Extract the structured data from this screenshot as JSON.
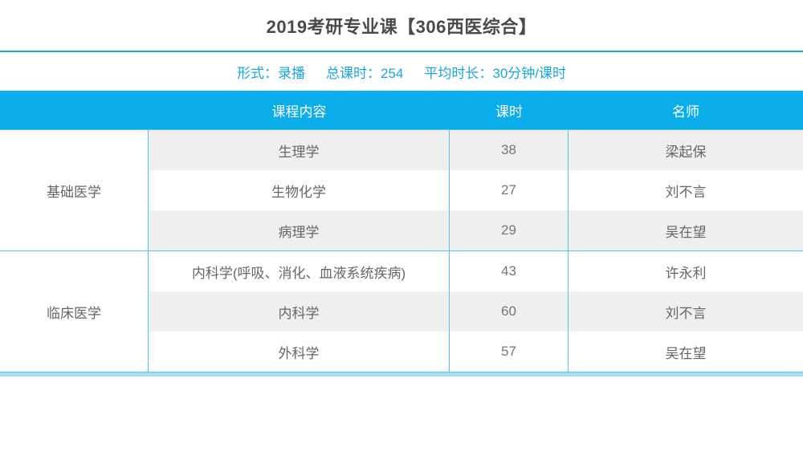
{
  "header": {
    "title": "2019考研专业课【306西医综合】"
  },
  "meta": {
    "items": [
      {
        "label": "形式：",
        "value": "录播"
      },
      {
        "label": "总课时：",
        "value": "254"
      },
      {
        "label": "平均时长：",
        "value": "30分钟/课时"
      }
    ]
  },
  "table": {
    "headers": {
      "category": "",
      "content": "课程内容",
      "hours": "课时",
      "teacher": "名师"
    },
    "groups": [
      {
        "category": "基础医学",
        "rows": [
          {
            "content": "生理学",
            "hours": "38",
            "teacher": "梁起保"
          },
          {
            "content": "生物化学",
            "hours": "27",
            "teacher": "刘不言"
          },
          {
            "content": "病理学",
            "hours": "29",
            "teacher": "吴在望"
          }
        ]
      },
      {
        "category": "临床医学",
        "rows": [
          {
            "content": "内科学(呼吸、消化、血液系统疾病)",
            "hours": "43",
            "teacher": "许永利"
          },
          {
            "content": "内科学",
            "hours": "60",
            "teacher": "刘不言"
          },
          {
            "content": "外科学",
            "hours": "57",
            "teacher": "吴在望"
          }
        ]
      }
    ]
  },
  "colors": {
    "header_bar": "#0badea",
    "title_divider": "#18a0df",
    "meta_text": "#18a6e3",
    "grid_line": "#54c2f0",
    "bottom_bar": "#a8dcf2",
    "shaded_row": "#efefef",
    "title_text": "#4a4a4a",
    "cell_text": "#666666"
  }
}
